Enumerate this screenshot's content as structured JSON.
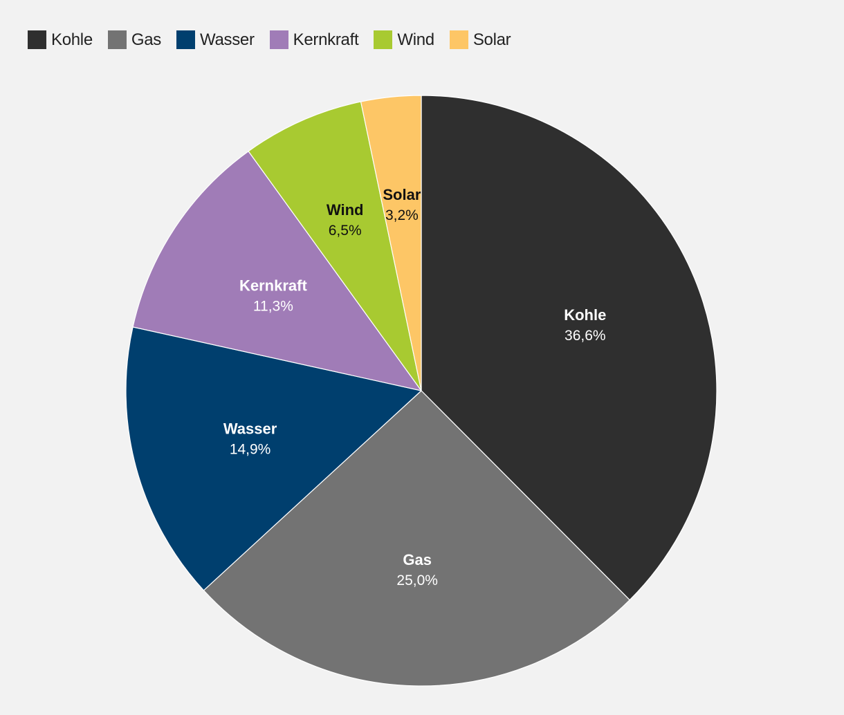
{
  "chart_data": {
    "type": "pie",
    "title": "",
    "legend": "top-left",
    "start": "top",
    "direction": "clockwise",
    "slices": [
      {
        "name": "Kohle",
        "value": 36.6,
        "label": "36,6%",
        "color": "#2f2f2f",
        "text_color": "#ffffff"
      },
      {
        "name": "Gas",
        "value": 25.0,
        "label": "25,0%",
        "color": "#737373",
        "text_color": "#ffffff"
      },
      {
        "name": "Wasser",
        "value": 14.9,
        "label": "14,9%",
        "color": "#003f6e",
        "text_color": "#ffffff"
      },
      {
        "name": "Kernkraft",
        "value": 11.3,
        "label": "11,3%",
        "color": "#a07cb7",
        "text_color": "#ffffff"
      },
      {
        "name": "Wind",
        "value": 6.5,
        "label": "6,5%",
        "color": "#a8ca31",
        "text_color": "#111111"
      },
      {
        "name": "Solar",
        "value": 3.2,
        "label": "3,2%",
        "color": "#fdc666",
        "text_color": "#111111"
      }
    ]
  }
}
